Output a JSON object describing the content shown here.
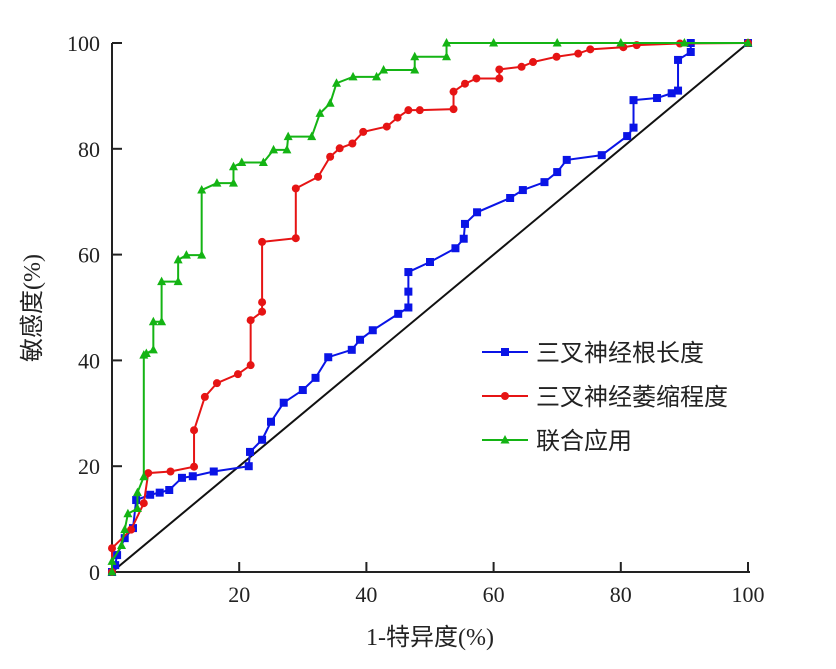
{
  "chart_data": {
    "type": "line",
    "title": "",
    "xlabel": "1-特异度(%)",
    "ylabel": "敏感度(%)",
    "xlim": [
      0,
      100
    ],
    "ylim": [
      0,
      100
    ],
    "xticks": [
      "20",
      "40",
      "60",
      "80",
      "100"
    ],
    "yticks": [
      "0",
      "20",
      "40",
      "60",
      "80",
      "100"
    ],
    "legend_position": "center-right",
    "grid": false,
    "reference_line": {
      "x": [
        0,
        100
      ],
      "y": [
        0,
        100
      ],
      "color": "#111111"
    },
    "series": [
      {
        "name": "三叉神经根长度",
        "color": "#0a14e6",
        "marker": "square",
        "x": [
          0,
          0.5,
          0.8,
          2,
          3.3,
          3.8,
          6,
          7.5,
          9,
          11,
          12.7,
          16,
          21.5,
          21.7,
          23.6,
          25,
          27,
          30,
          32,
          34,
          37.7,
          39,
          41,
          45,
          46.6,
          46.6,
          46.6,
          50,
          54,
          55.3,
          55.5,
          57.4,
          62.6,
          64.6,
          68,
          70,
          71.5,
          77,
          81,
          82,
          82,
          85.7,
          88,
          89,
          89,
          91,
          91,
          100
        ],
        "y": [
          0,
          1.3,
          3.2,
          6.4,
          8.3,
          13.6,
          14.6,
          15,
          15.5,
          17.8,
          18.1,
          19,
          20,
          22.7,
          25,
          28.4,
          32,
          34.4,
          36.7,
          40.6,
          42,
          43.9,
          45.7,
          48.8,
          50,
          53,
          56.7,
          58.6,
          61.2,
          63,
          65.8,
          68,
          70.7,
          72.2,
          73.7,
          75.6,
          77.9,
          78.8,
          82.4,
          84,
          89.2,
          89.6,
          90.5,
          91,
          96.8,
          98.3,
          100,
          100
        ]
      },
      {
        "name": "三叉神经萎缩程度",
        "color": "#e61414",
        "marker": "circle",
        "x": [
          0,
          0,
          3,
          5,
          5.7,
          9.2,
          12.9,
          12.9,
          14.6,
          16.5,
          19.8,
          21.8,
          21.8,
          23.6,
          23.6,
          23.6,
          28.9,
          28.9,
          32.4,
          34.3,
          35.8,
          37.8,
          39.5,
          43.2,
          44.9,
          46.6,
          48.4,
          53.7,
          53.7,
          55.5,
          57.3,
          60.9,
          60.9,
          64.4,
          66.2,
          69.9,
          73.3,
          75.2,
          80.4,
          82.5,
          89.3,
          100
        ],
        "y": [
          0,
          4.5,
          8,
          13,
          18.7,
          19,
          19.9,
          26.8,
          33.1,
          35.7,
          37.4,
          39.1,
          47.6,
          49.2,
          51,
          62.4,
          63.1,
          72.5,
          74.7,
          78.5,
          80.1,
          81,
          83.2,
          84.2,
          85.9,
          87.3,
          87.3,
          87.5,
          90.8,
          92.3,
          93.3,
          93.3,
          95,
          95.5,
          96.4,
          97.4,
          98,
          98.8,
          99.2,
          99.6,
          99.9,
          100
        ]
      },
      {
        "name": "联合应用",
        "color": "#14b414",
        "marker": "triangle",
        "x": [
          0,
          0,
          1.5,
          2,
          2.5,
          4,
          4,
          5,
          5,
          5.4,
          6.5,
          6.5,
          7.8,
          7.8,
          10.4,
          10.4,
          11.7,
          14.1,
          14.1,
          16.5,
          19.1,
          19.1,
          20.4,
          23.8,
          25.4,
          27.5,
          27.7,
          31.4,
          32.7,
          34.3,
          35.3,
          37.9,
          41.6,
          42.7,
          47.6,
          47.6,
          52.6,
          52.6,
          60,
          70,
          80,
          90,
          100
        ],
        "y": [
          0,
          2,
          5,
          8,
          11,
          12,
          15,
          18,
          41,
          41.3,
          42,
          47.3,
          47.3,
          54.9,
          54.9,
          59,
          59.9,
          59.9,
          72.2,
          73.5,
          73.5,
          76.6,
          77.4,
          77.4,
          79.8,
          79.8,
          82.3,
          82.3,
          86.7,
          88.6,
          92.4,
          93.6,
          93.6,
          94.9,
          94.9,
          97.4,
          97.4,
          100,
          100,
          100,
          100,
          100,
          100
        ]
      }
    ]
  }
}
